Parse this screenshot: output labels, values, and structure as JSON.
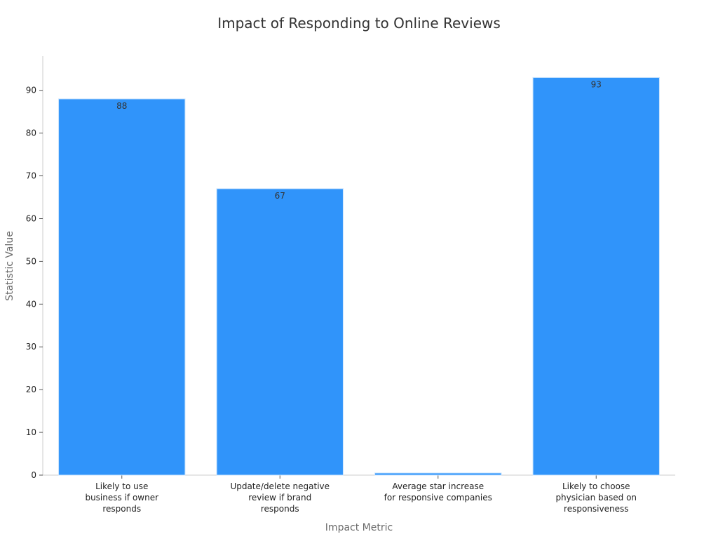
{
  "chart_data": {
    "type": "bar",
    "title": "Impact of Responding to Online Reviews",
    "xlabel": "Impact Metric",
    "ylabel": "Statistic Value",
    "categories": [
      [
        "Likely to use",
        "business if owner",
        "responds"
      ],
      [
        "Update/delete negative",
        "review if brand",
        "responds"
      ],
      [
        "Average star increase",
        "for responsive companies"
      ],
      [
        "Likely to choose",
        "physician based on",
        "responsiveness"
      ]
    ],
    "values": [
      88,
      67,
      0.5,
      93
    ],
    "data_labels": [
      "88",
      "67",
      "",
      "93"
    ],
    "ylim": [
      0,
      98
    ],
    "yticks": [
      0,
      10,
      20,
      30,
      40,
      50,
      60,
      70,
      80,
      90
    ],
    "grid": false,
    "colors": {
      "bar": "#3094fa",
      "bar_edge": "#c9e3fd",
      "axis": "#cccccc"
    }
  }
}
